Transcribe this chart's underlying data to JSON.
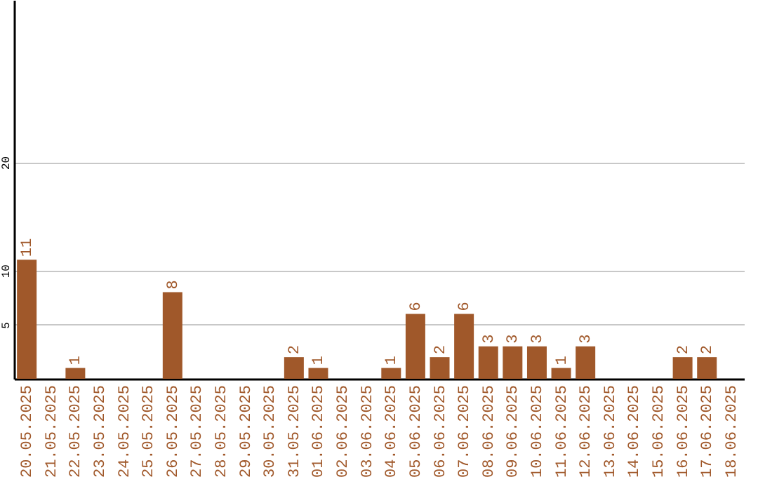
{
  "chart_data": {
    "type": "bar",
    "categories": [
      "20.05.2025",
      "21.05.2025",
      "22.05.2025",
      "23.05.2025",
      "24.05.2025",
      "25.05.2025",
      "26.05.2025",
      "27.05.2025",
      "28.05.2025",
      "29.05.2025",
      "30.05.2025",
      "31.05.2025",
      "01.06.2025",
      "02.06.2025",
      "03.06.2025",
      "04.06.2025",
      "05.06.2025",
      "06.06.2025",
      "07.06.2025",
      "08.06.2025",
      "09.06.2025",
      "10.06.2025",
      "11.06.2025",
      "12.06.2025",
      "13.06.2025",
      "14.06.2025",
      "15.06.2025",
      "16.06.2025",
      "17.06.2025",
      "18.06.2025"
    ],
    "values": [
      11,
      0,
      1,
      0,
      0,
      0,
      8,
      0,
      0,
      0,
      0,
      2,
      1,
      0,
      0,
      1,
      6,
      2,
      6,
      3,
      3,
      3,
      1,
      3,
      0,
      0,
      0,
      2,
      2,
      0
    ],
    "value_labels": [
      "11",
      null,
      "1",
      null,
      null,
      null,
      "8",
      null,
      null,
      null,
      null,
      "2",
      "1",
      null,
      null,
      "1",
      "6",
      "2",
      "6",
      "3",
      "3",
      "3",
      "1",
      "3",
      null,
      null,
      null,
      "2",
      "2",
      null
    ],
    "color": "#a0582a",
    "ylim": [
      0,
      35
    ],
    "yticks": [
      5,
      10,
      20
    ],
    "grid": "y"
  }
}
